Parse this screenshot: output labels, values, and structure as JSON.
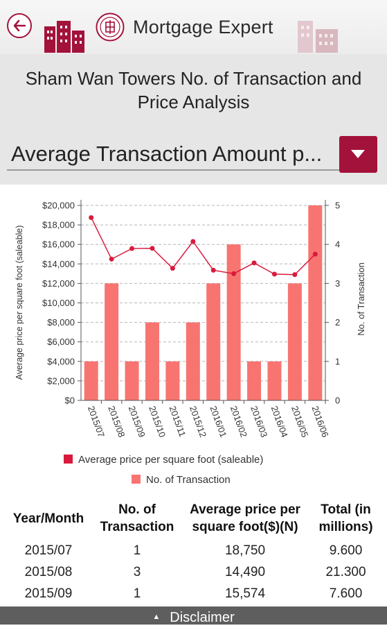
{
  "header": {
    "app_title": "Mortgage Expert",
    "icons": [
      "back-arrow-icon",
      "buildings-icon",
      "seal-logo-icon",
      "buildings-faded-icon"
    ]
  },
  "page_title": "Sham Wan Towers No. of Transaction and Price Analysis",
  "dropdown": {
    "selected_value": "Average Transaction Amount p...",
    "icon": "triangle-down-icon"
  },
  "chart_data": {
    "type": "bar+line",
    "categories": [
      "2015/07",
      "2015/08",
      "2015/09",
      "2015/10",
      "2015/11",
      "2015/12",
      "2016/01",
      "2016/02",
      "2016/03",
      "2016/04",
      "2016/05",
      "2016/06"
    ],
    "bar_series": {
      "name": "No. of Transaction",
      "color": "#f87470",
      "values": [
        1,
        3,
        1,
        2,
        1,
        2,
        3,
        4,
        1,
        1,
        3,
        5
      ]
    },
    "line_series": {
      "name": "Average price per square foot (saleable)",
      "color": "#d81b3c",
      "values": [
        18750,
        14490,
        15574,
        15600,
        13550,
        16300,
        13350,
        13000,
        14100,
        12950,
        12900,
        15000
      ]
    },
    "ylabel_left": "Average price per square foot (saleable)",
    "ylabel_right": "No. of Transaction",
    "ylim_left": [
      0,
      20000
    ],
    "ylim_right": [
      0,
      5
    ],
    "yticks_left": [
      "$0",
      "$2,000",
      "$4,000",
      "$6,000",
      "$8,000",
      "$10,000",
      "$12,000",
      "$14,000",
      "$16,000",
      "$18,000",
      "$20,000"
    ],
    "yticks_right": [
      "0",
      "1",
      "2",
      "3",
      "4",
      "5"
    ],
    "grid": true,
    "legend_position": "bottom"
  },
  "table": {
    "headers": [
      "Year/Month",
      "No. of Transaction",
      "Average price per square foot($)(N)",
      "Total (in millions)"
    ],
    "rows": [
      [
        "2015/07",
        "1",
        "18,750",
        "9.600"
      ],
      [
        "2015/08",
        "3",
        "14,490",
        "21.300"
      ],
      [
        "2015/09",
        "1",
        "15,574",
        "7.600"
      ]
    ]
  },
  "footer": {
    "disclaimer_label": "Disclaimer",
    "icon": "caret-up-icon"
  },
  "colors": {
    "accent": "#a3123a",
    "bar": "#f87470",
    "line": "#d81b3c",
    "footer_bg": "#5e5e5e"
  }
}
